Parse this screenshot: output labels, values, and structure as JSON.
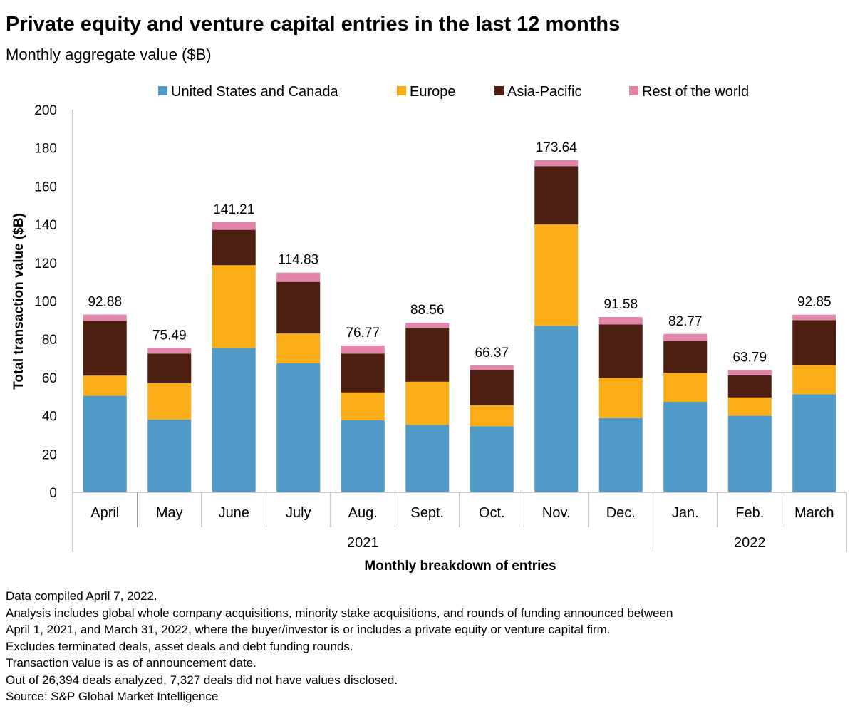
{
  "title": "Private equity and venture capital entries in the last 12 months",
  "subtitle": "Monthly aggregate value ($B)",
  "colors": {
    "us_canada": "#4f9ac6",
    "europe": "#fbad18",
    "asia_pacific": "#4d1f11",
    "rest_of_world": "#e384aa",
    "axis": "#999999"
  },
  "chart_data": {
    "type": "bar",
    "stacked": true,
    "xlabel": "Monthly breakdown of entries",
    "ylabel": "Total transaction value ($B)",
    "ylim": [
      0,
      200
    ],
    "yticks": [
      0,
      20,
      40,
      60,
      80,
      100,
      120,
      140,
      160,
      180,
      200
    ],
    "categories": [
      "April",
      "May",
      "June",
      "July",
      "Aug.",
      "Sept.",
      "Oct.",
      "Nov.",
      "Dec.",
      "Jan.",
      "Feb.",
      "March"
    ],
    "year_groups": [
      {
        "label": "2021",
        "start": 0,
        "end": 8
      },
      {
        "label": "2022",
        "start": 9,
        "end": 11
      }
    ],
    "totals": [
      "92.88",
      "75.49",
      "141.21",
      "114.83",
      "76.77",
      "88.56",
      "66.37",
      "173.64",
      "91.58",
      "82.77",
      "63.79",
      "92.85"
    ],
    "legend_position": "top",
    "series": [
      {
        "name": "United States and Canada",
        "key": "us_canada",
        "values": [
          50.5,
          38.0,
          75.5,
          67.5,
          37.7,
          35.2,
          34.5,
          87.0,
          38.8,
          47.3,
          40.1,
          51.2
        ]
      },
      {
        "name": "Europe",
        "key": "europe",
        "values": [
          10.5,
          19.0,
          43.2,
          15.5,
          14.5,
          22.6,
          11.0,
          53.0,
          21.0,
          15.2,
          9.5,
          15.3
        ]
      },
      {
        "name": "Asia-Pacific",
        "key": "asia_pacific",
        "values": [
          28.6,
          15.5,
          18.5,
          27.0,
          20.3,
          28.2,
          18.3,
          30.5,
          28.0,
          16.6,
          11.5,
          23.5
        ]
      },
      {
        "name": "Rest of the world",
        "key": "rest_of_world",
        "values": [
          3.28,
          2.99,
          4.01,
          4.83,
          4.27,
          2.56,
          2.57,
          3.14,
          3.78,
          3.67,
          2.69,
          2.85
        ]
      }
    ]
  },
  "notes": [
    "Data compiled April 7, 2022.",
    "Analysis includes global whole company acquisitions, minority stake acquisitions, and rounds of funding announced between",
    "April 1, 2021, and March 31, 2022, where the buyer/investor is or includes a private equity or venture capital firm.",
    "Excludes terminated deals, asset deals and debt funding rounds.",
    "Transaction value is as of announcement date.",
    "Out of 26,394 deals analyzed, 7,327 deals did not have values disclosed.",
    "Source: S&P Global Market Intelligence"
  ]
}
